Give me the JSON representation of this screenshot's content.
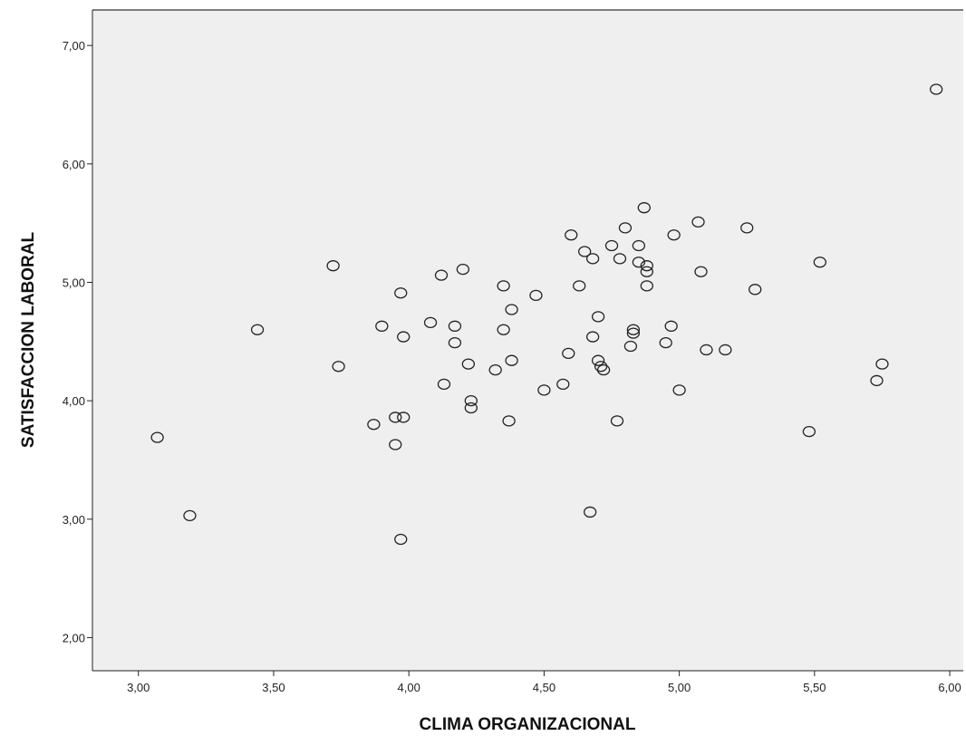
{
  "chart_data": {
    "type": "scatter",
    "title": "",
    "xlabel": "CLIMA ORGANIZACIONAL",
    "ylabel": "SATISFACCION LABORAL",
    "xlim": [
      2.83,
      6.05
    ],
    "ylim": [
      1.72,
      7.3
    ],
    "x_ticks": [
      "3,00",
      "3,50",
      "4,00",
      "4,50",
      "5,00",
      "5,50",
      "6,00"
    ],
    "x_tick_values": [
      3.0,
      3.5,
      4.0,
      4.5,
      5.0,
      5.5,
      6.0
    ],
    "y_ticks": [
      "2,00",
      "3,00",
      "4,00",
      "5,00",
      "6,00",
      "7,00"
    ],
    "y_tick_values": [
      2.0,
      3.0,
      4.0,
      5.0,
      6.0,
      7.0
    ],
    "grid": false,
    "colors": {
      "plot_background": "#efefef",
      "marker_stroke": "#222222",
      "axis": "#222222"
    },
    "marker": "open-circle",
    "points": [
      {
        "x": 3.07,
        "y": 3.69
      },
      {
        "x": 3.19,
        "y": 3.03
      },
      {
        "x": 3.44,
        "y": 4.6
      },
      {
        "x": 3.72,
        "y": 5.14
      },
      {
        "x": 3.74,
        "y": 4.29
      },
      {
        "x": 3.87,
        "y": 3.8
      },
      {
        "x": 3.9,
        "y": 4.63
      },
      {
        "x": 3.95,
        "y": 3.86
      },
      {
        "x": 3.95,
        "y": 3.63
      },
      {
        "x": 3.97,
        "y": 2.83
      },
      {
        "x": 3.97,
        "y": 4.91
      },
      {
        "x": 3.98,
        "y": 3.86
      },
      {
        "x": 3.98,
        "y": 4.54
      },
      {
        "x": 4.08,
        "y": 4.66
      },
      {
        "x": 4.12,
        "y": 5.06
      },
      {
        "x": 4.13,
        "y": 4.14
      },
      {
        "x": 4.17,
        "y": 4.63
      },
      {
        "x": 4.17,
        "y": 4.49
      },
      {
        "x": 4.2,
        "y": 5.11
      },
      {
        "x": 4.22,
        "y": 4.31
      },
      {
        "x": 4.23,
        "y": 4.0
      },
      {
        "x": 4.23,
        "y": 3.94
      },
      {
        "x": 4.32,
        "y": 4.26
      },
      {
        "x": 4.35,
        "y": 4.97
      },
      {
        "x": 4.35,
        "y": 4.6
      },
      {
        "x": 4.37,
        "y": 3.83
      },
      {
        "x": 4.38,
        "y": 4.77
      },
      {
        "x": 4.38,
        "y": 4.34
      },
      {
        "x": 4.47,
        "y": 4.89
      },
      {
        "x": 4.5,
        "y": 4.09
      },
      {
        "x": 4.57,
        "y": 4.14
      },
      {
        "x": 4.59,
        "y": 4.4
      },
      {
        "x": 4.6,
        "y": 5.4
      },
      {
        "x": 4.63,
        "y": 4.97
      },
      {
        "x": 4.65,
        "y": 5.26
      },
      {
        "x": 4.67,
        "y": 3.06
      },
      {
        "x": 4.68,
        "y": 5.2
      },
      {
        "x": 4.68,
        "y": 4.54
      },
      {
        "x": 4.7,
        "y": 4.71
      },
      {
        "x": 4.7,
        "y": 4.34
      },
      {
        "x": 4.71,
        "y": 4.29
      },
      {
        "x": 4.72,
        "y": 4.26
      },
      {
        "x": 4.75,
        "y": 5.31
      },
      {
        "x": 4.77,
        "y": 3.83
      },
      {
        "x": 4.78,
        "y": 5.2
      },
      {
        "x": 4.8,
        "y": 5.46
      },
      {
        "x": 4.82,
        "y": 4.46
      },
      {
        "x": 4.83,
        "y": 4.6
      },
      {
        "x": 4.83,
        "y": 4.57
      },
      {
        "x": 4.85,
        "y": 5.31
      },
      {
        "x": 4.85,
        "y": 5.17
      },
      {
        "x": 4.87,
        "y": 5.63
      },
      {
        "x": 4.88,
        "y": 5.14
      },
      {
        "x": 4.88,
        "y": 5.09
      },
      {
        "x": 4.88,
        "y": 4.97
      },
      {
        "x": 4.95,
        "y": 4.49
      },
      {
        "x": 4.97,
        "y": 4.63
      },
      {
        "x": 4.98,
        "y": 5.4
      },
      {
        "x": 5.0,
        "y": 4.09
      },
      {
        "x": 5.07,
        "y": 5.51
      },
      {
        "x": 5.08,
        "y": 5.09
      },
      {
        "x": 5.1,
        "y": 4.43
      },
      {
        "x": 5.17,
        "y": 4.43
      },
      {
        "x": 5.25,
        "y": 5.46
      },
      {
        "x": 5.28,
        "y": 4.94
      },
      {
        "x": 5.48,
        "y": 3.74
      },
      {
        "x": 5.52,
        "y": 5.17
      },
      {
        "x": 5.73,
        "y": 4.17
      },
      {
        "x": 5.75,
        "y": 4.31
      },
      {
        "x": 5.95,
        "y": 6.63
      }
    ]
  }
}
